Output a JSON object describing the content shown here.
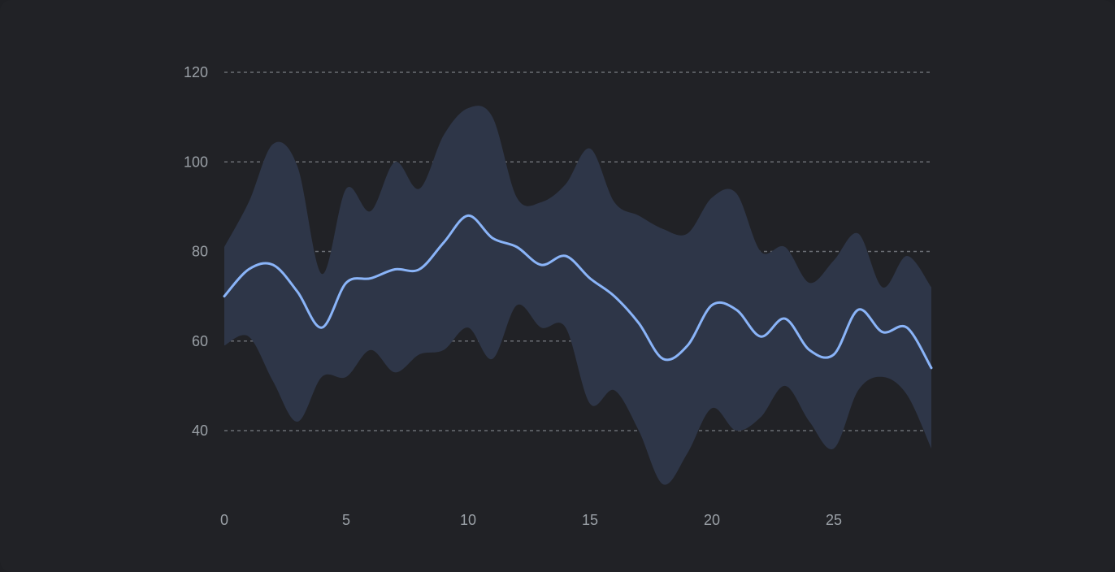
{
  "chart_data": {
    "type": "line",
    "title": "",
    "xlabel": "",
    "ylabel": "",
    "x": [
      0,
      1,
      2,
      3,
      4,
      5,
      6,
      7,
      8,
      9,
      10,
      11,
      12,
      13,
      14,
      15,
      16,
      17,
      18,
      19,
      20,
      21,
      22,
      23,
      24,
      25,
      26,
      27,
      28,
      29
    ],
    "series": [
      {
        "values": [
          70,
          76,
          77,
          71,
          63,
          73,
          74,
          76,
          76,
          82,
          88,
          83,
          81,
          77,
          79,
          74,
          70,
          64,
          56,
          59,
          68,
          67,
          61,
          65,
          58,
          57,
          67,
          62,
          63,
          54
        ],
        "lower": [
          59,
          61,
          51,
          42,
          52,
          52,
          58,
          53,
          57,
          58,
          63,
          56,
          68,
          63,
          63,
          46,
          49,
          40,
          28,
          35,
          45,
          40,
          43,
          50,
          42,
          36,
          49,
          52,
          48,
          36
        ],
        "upper": [
          81,
          91,
          104,
          99,
          75,
          94,
          89,
          100,
          94,
          106,
          112,
          110,
          92,
          91,
          95,
          103,
          91,
          88,
          85,
          84,
          92,
          93,
          80,
          81,
          73,
          78,
          84,
          72,
          79,
          72
        ]
      }
    ],
    "xlim": [
      0,
      29
    ],
    "ylim": [
      24,
      130
    ],
    "x_ticks": [
      "0",
      "5",
      "10",
      "15",
      "20",
      "25"
    ],
    "y_ticks": [
      "40",
      "60",
      "80",
      "100",
      "120"
    ],
    "grid": true,
    "colors": {
      "line": "#8ab4f8",
      "band": "#2e3648",
      "grid": "#6b6e74",
      "text": "#9aa0a6"
    }
  }
}
